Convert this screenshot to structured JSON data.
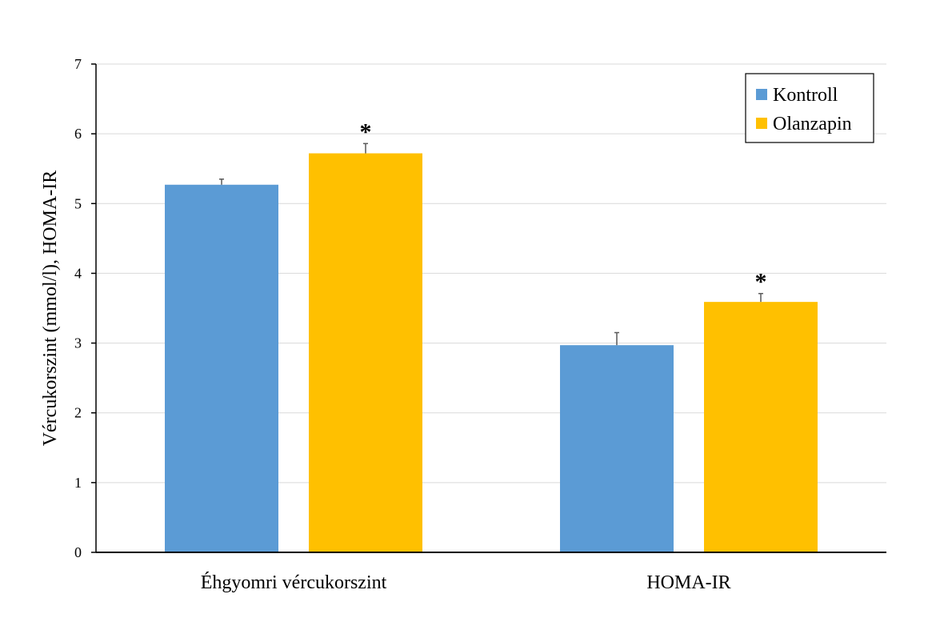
{
  "chart_data": {
    "type": "bar",
    "categories": [
      "Éhgyomri vércukorszint",
      "HOMA-IR"
    ],
    "series": [
      {
        "name": "Kontroll",
        "color": "#5b9bd5",
        "values": [
          5.27,
          2.97
        ],
        "errors": [
          0.08,
          0.18
        ],
        "significance": [
          "",
          ""
        ]
      },
      {
        "name": "Olanzapin",
        "color": "#ffc000",
        "values": [
          5.72,
          3.59
        ],
        "errors": [
          0.14,
          0.12
        ],
        "significance": [
          "*",
          "*"
        ]
      }
    ],
    "xlabel": "",
    "ylabel": "Vércukorszint (mmol/l), HOMA-IR",
    "ylim": [
      0,
      7
    ],
    "yticks": [
      0,
      1,
      2,
      3,
      4,
      5,
      6,
      7
    ],
    "grid": true,
    "legend_position": "top-right"
  }
}
